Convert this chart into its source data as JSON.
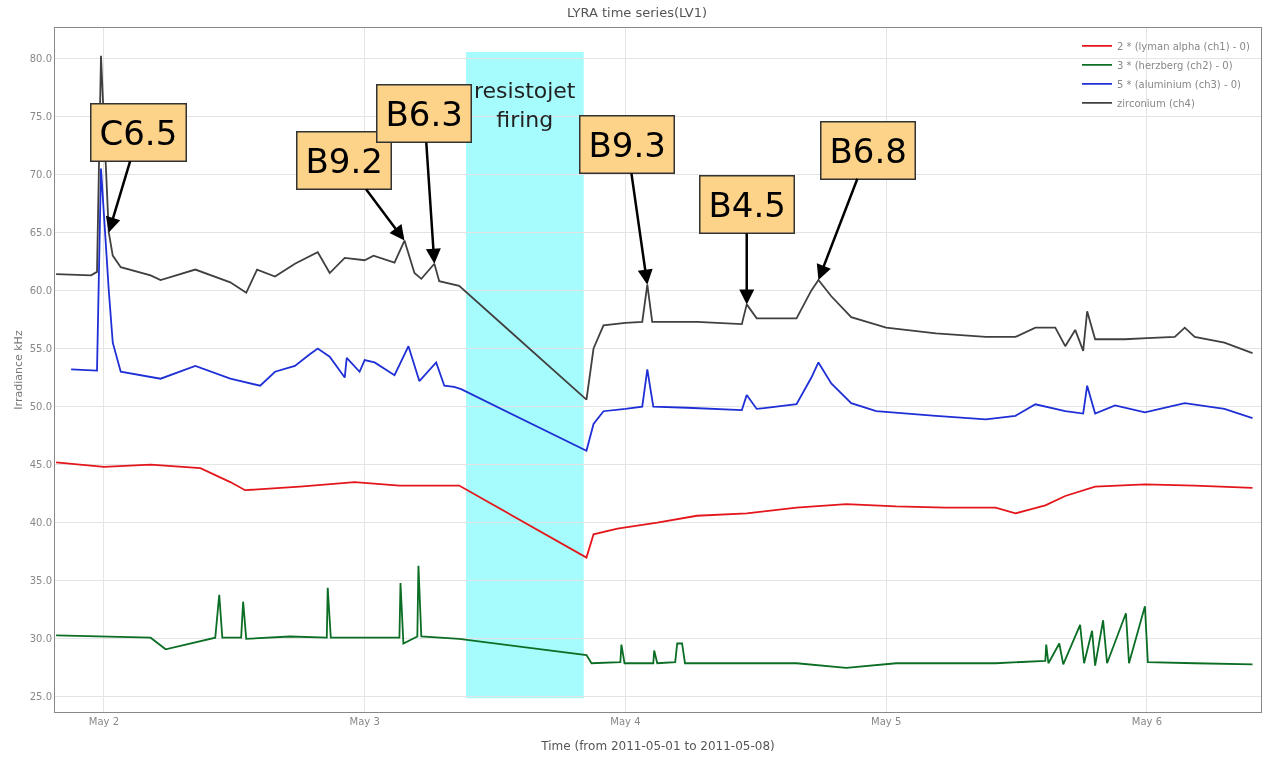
{
  "chart_data": {
    "type": "line",
    "title": "LYRA time series(LV1)",
    "xlabel": "Time (from 2011-05-01 to 2011-05-08)",
    "ylabel": "Irradiance kHz",
    "xlim": [
      "2011-05-01T19:30",
      "2011-05-06T10:30"
    ],
    "xticks": [
      {
        "value": "2011-05-02",
        "label": "May 2"
      },
      {
        "value": "2011-05-03",
        "label": "May 3"
      },
      {
        "value": "2011-05-04",
        "label": "May 4"
      },
      {
        "value": "2011-05-05",
        "label": "May 5"
      },
      {
        "value": "2011-05-06",
        "label": "May 6"
      }
    ],
    "ylim": [
      23.7,
      82.6
    ],
    "yticks": [
      {
        "value": 25,
        "label": "25.0"
      },
      {
        "value": 30,
        "label": "30.0"
      },
      {
        "value": 35,
        "label": "35.0"
      },
      {
        "value": 40,
        "label": "40.0"
      },
      {
        "value": 45,
        "label": "45.0"
      },
      {
        "value": 50,
        "label": "50.0"
      },
      {
        "value": 55,
        "label": "55.0"
      },
      {
        "value": 60,
        "label": "60.0"
      },
      {
        "value": 65,
        "label": "65.0"
      },
      {
        "value": 70,
        "label": "70.0"
      },
      {
        "value": 75,
        "label": "75.0"
      },
      {
        "value": 80,
        "label": "80.0"
      }
    ],
    "grid": true,
    "legend": "top right",
    "marker": "none",
    "line_style": "solid",
    "series": [
      {
        "name": "2 * (lyman alpha (ch1) - 0)",
        "color": "#e3161b",
        "x": [
          "2011-05-01T19:36",
          "2011-05-02T00:00",
          "2011-05-02T04:18",
          "2011-05-02T08:53",
          "2011-05-02T11:38",
          "2011-05-02T13:00",
          "2011-05-02T18:02",
          "2011-05-02T23:05",
          "2011-05-03T03:12",
          "2011-05-03T08:42",
          "2011-05-03T20:25",
          "2011-05-03T21:04",
          "2011-05-03T23:16",
          "2011-05-04T02:56",
          "2011-05-04T06:35",
          "2011-05-04T11:10",
          "2011-05-04T15:45",
          "2011-05-04T20:20",
          "2011-05-05T00:55",
          "2011-05-05T05:29",
          "2011-05-05T10:04",
          "2011-05-05T11:54",
          "2011-05-05T14:39",
          "2011-05-05T16:29",
          "2011-05-05T19:14",
          "2011-05-05T23:49",
          "2011-05-06T04:24",
          "2011-05-06T09:43"
        ],
        "values": [
          45.2,
          44.8,
          45.0,
          44.7,
          43.5,
          42.8,
          43.1,
          43.5,
          43.2,
          43.2,
          37.0,
          39.0,
          39.5,
          40.0,
          40.6,
          40.8,
          41.3,
          41.6,
          41.4,
          41.3,
          41.3,
          40.8,
          41.5,
          42.3,
          43.1,
          43.3,
          43.2,
          43.0
        ]
      },
      {
        "name": "3 * (herzberg (ch2) - 0)",
        "color": "#0b6e24",
        "x": [
          "2011-05-01T19:36",
          "2011-05-02T04:18",
          "2011-05-02T05:41",
          "2011-05-02T10:15",
          "2011-05-02T10:37",
          "2011-05-02T10:54",
          "2011-05-02T12:38",
          "2011-05-02T12:49",
          "2011-05-02T13:06",
          "2011-05-02T17:07",
          "2011-05-02T20:31",
          "2011-05-02T20:36",
          "2011-05-02T20:53",
          "2011-05-03T03:12",
          "2011-05-03T03:18",
          "2011-05-03T03:34",
          "2011-05-03T04:51",
          "2011-05-03T04:57",
          "2011-05-03T05:13",
          "2011-05-03T08:42",
          "2011-05-03T20:25",
          "2011-05-03T20:53",
          "2011-05-03T23:32",
          "2011-05-03T23:38",
          "2011-05-03T23:55",
          "2011-05-04T02:34",
          "2011-05-04T02:39",
          "2011-05-04T02:56",
          "2011-05-04T04:35",
          "2011-05-04T04:46",
          "2011-05-04T05:13",
          "2011-05-04T05:29",
          "2011-05-04T15:45",
          "2011-05-04T20:20",
          "2011-05-05T00:55",
          "2011-05-05T10:04",
          "2011-05-05T14:39",
          "2011-05-05T14:44",
          "2011-05-05T14:56",
          "2011-05-05T15:56",
          "2011-05-05T16:18",
          "2011-05-05T17:51",
          "2011-05-05T18:13",
          "2011-05-05T18:57",
          "2011-05-05T19:14",
          "2011-05-05T19:58",
          "2011-05-05T20:20",
          "2011-05-05T22:04",
          "2011-05-05T22:21",
          "2011-05-05T23:49",
          "2011-05-06T00:05",
          "2011-05-06T04:24",
          "2011-05-06T09:43"
        ],
        "values": [
          30.3,
          30.1,
          29.1,
          30.1,
          33.8,
          30.1,
          30.1,
          33.2,
          30.0,
          30.2,
          30.1,
          34.4,
          30.1,
          30.1,
          34.8,
          29.6,
          30.2,
          36.3,
          30.2,
          30.0,
          28.6,
          27.9,
          28.0,
          29.5,
          27.9,
          27.9,
          29.0,
          27.9,
          28.0,
          29.6,
          29.6,
          27.9,
          27.9,
          27.5,
          27.9,
          27.9,
          28.1,
          29.5,
          27.9,
          29.6,
          27.8,
          31.2,
          27.9,
          30.7,
          27.7,
          31.6,
          27.9,
          32.2,
          27.9,
          32.8,
          28.0,
          27.9,
          27.8
        ]
      },
      {
        "name": "5 * (aluminium (ch3) - 0)",
        "color": "#1f2fd6",
        "x": [
          "2011-05-01T20:59",
          "2011-05-01T23:22",
          "2011-05-01T23:44",
          "2011-05-02T00:27",
          "2011-05-02T00:49",
          "2011-05-02T01:33",
          "2011-05-02T05:13",
          "2011-05-02T08:25",
          "2011-05-02T11:38",
          "2011-05-02T14:23",
          "2011-05-02T15:45",
          "2011-05-02T17:35",
          "2011-05-02T18:57",
          "2011-05-02T19:41",
          "2011-05-02T20:47",
          "2011-05-02T22:10",
          "2011-05-02T22:21",
          "2011-05-02T23:32",
          "2011-05-03T00:00",
          "2011-05-03T00:55",
          "2011-05-03T02:45",
          "2011-05-03T04:02",
          "2011-05-03T05:02",
          "2011-05-03T06:35",
          "2011-05-03T07:20",
          "2011-05-03T08:14",
          "2011-05-03T08:53",
          "2011-05-03T20:25",
          "2011-05-03T21:04",
          "2011-05-03T21:59",
          "2011-05-04T00:00",
          "2011-05-04T01:33",
          "2011-05-04T02:01",
          "2011-05-04T02:34",
          "2011-05-04T05:41",
          "2011-05-04T10:43",
          "2011-05-04T11:10",
          "2011-05-04T12:05",
          "2011-05-04T15:45",
          "2011-05-04T17:07",
          "2011-05-04T17:46",
          "2011-05-04T18:57",
          "2011-05-04T20:47",
          "2011-05-04T23:05",
          "2011-05-05T04:35",
          "2011-05-05T09:10",
          "2011-05-05T11:54",
          "2011-05-05T13:44",
          "2011-05-05T16:29",
          "2011-05-05T18:08",
          "2011-05-05T18:30",
          "2011-05-05T19:14",
          "2011-05-05T21:04",
          "2011-05-05T23:49",
          "2011-05-06T03:29",
          "2011-05-06T07:08",
          "2011-05-06T09:43"
        ],
        "values": [
          53.2,
          53.1,
          70.5,
          60.0,
          55.5,
          53.0,
          52.4,
          53.5,
          52.4,
          51.8,
          53.0,
          53.5,
          54.5,
          55.0,
          54.3,
          52.5,
          54.2,
          53.0,
          54.0,
          53.8,
          52.7,
          55.2,
          52.2,
          53.8,
          51.8,
          51.7,
          51.5,
          46.2,
          48.5,
          49.6,
          49.8,
          50.0,
          53.2,
          50.0,
          49.9,
          49.7,
          51.0,
          49.8,
          50.2,
          52.5,
          53.8,
          52.0,
          50.3,
          49.6,
          49.2,
          48.9,
          49.2,
          50.2,
          49.6,
          49.4,
          51.8,
          49.4,
          50.1,
          49.5,
          50.3,
          49.8,
          49.0
        ]
      },
      {
        "name": "zirconium (ch4)",
        "color": "#404040",
        "x": [
          "2011-05-01T19:36",
          "2011-05-01T22:49",
          "2011-05-01T23:22",
          "2011-05-01T23:44",
          "2011-05-02T00:27",
          "2011-05-02T00:49",
          "2011-05-02T01:33",
          "2011-05-02T04:18",
          "2011-05-02T05:13",
          "2011-05-02T08:25",
          "2011-05-02T11:38",
          "2011-05-02T13:06",
          "2011-05-02T14:06",
          "2011-05-02T15:45",
          "2011-05-02T17:35",
          "2011-05-02T19:41",
          "2011-05-02T20:47",
          "2011-05-02T22:10",
          "2011-05-03T00:00",
          "2011-05-03T00:49",
          "2011-05-03T02:45",
          "2011-05-03T03:40",
          "2011-05-03T04:35",
          "2011-05-03T05:13",
          "2011-05-03T06:25",
          "2011-05-03T06:52",
          "2011-05-03T08:42",
          "2011-05-03T20:25",
          "2011-05-03T21:04",
          "2011-05-03T21:59",
          "2011-05-04T00:00",
          "2011-05-04T01:33",
          "2011-05-04T02:01",
          "2011-05-04T02:28",
          "2011-05-04T06:35",
          "2011-05-04T10:43",
          "2011-05-04T11:10",
          "2011-05-04T12:05",
          "2011-05-04T15:45",
          "2011-05-04T17:07",
          "2011-05-04T17:46",
          "2011-05-04T18:57",
          "2011-05-04T20:47",
          "2011-05-05T00:00",
          "2011-05-05T04:35",
          "2011-05-05T09:10",
          "2011-05-05T11:54",
          "2011-05-05T13:44",
          "2011-05-05T15:34",
          "2011-05-05T16:29",
          "2011-05-05T17:24",
          "2011-05-05T18:08",
          "2011-05-05T18:30",
          "2011-05-05T19:14",
          "2011-05-05T21:59",
          "2011-05-06T00:00",
          "2011-05-06T02:34",
          "2011-05-06T03:29",
          "2011-05-06T04:24",
          "2011-05-06T07:08",
          "2011-05-06T09:43"
        ],
        "values": [
          61.4,
          61.3,
          61.6,
          80.2,
          65.0,
          63.0,
          62.0,
          61.3,
          60.9,
          61.8,
          60.7,
          59.8,
          61.8,
          61.2,
          62.3,
          63.3,
          61.5,
          62.8,
          62.6,
          63.0,
          62.4,
          64.3,
          61.5,
          61.0,
          62.3,
          60.8,
          60.4,
          50.6,
          55.0,
          57.0,
          57.2,
          57.3,
          60.5,
          57.3,
          57.3,
          57.1,
          58.8,
          57.6,
          57.6,
          60.0,
          60.9,
          59.5,
          57.7,
          56.8,
          56.3,
          56.0,
          56.0,
          56.8,
          56.8,
          55.2,
          56.6,
          54.8,
          58.2,
          55.8,
          55.8,
          55.9,
          56.0,
          56.8,
          56.0,
          55.5,
          54.6
        ]
      }
    ],
    "bands": [
      {
        "axis": "x",
        "from": "2011-05-03T09:20",
        "to": "2011-05-03T20:10",
        "label": "resistojet firing",
        "color": "#a6fcfc"
      }
    ],
    "annotations": [
      {
        "text": "C6.5",
        "x": "2011-05-02T00:27",
        "y": 65.0
      },
      {
        "text": "B9.2",
        "x": "2011-05-03T03:40",
        "y": 64.3
      },
      {
        "text": "B6.3",
        "x": "2011-05-03T06:25",
        "y": 62.3
      },
      {
        "text": "B9.3",
        "x": "2011-05-04T02:01",
        "y": 60.5
      },
      {
        "text": "B4.5",
        "x": "2011-05-04T11:10",
        "y": 58.8
      },
      {
        "text": "B6.8",
        "x": "2011-05-04T17:46",
        "y": 60.9
      }
    ]
  }
}
